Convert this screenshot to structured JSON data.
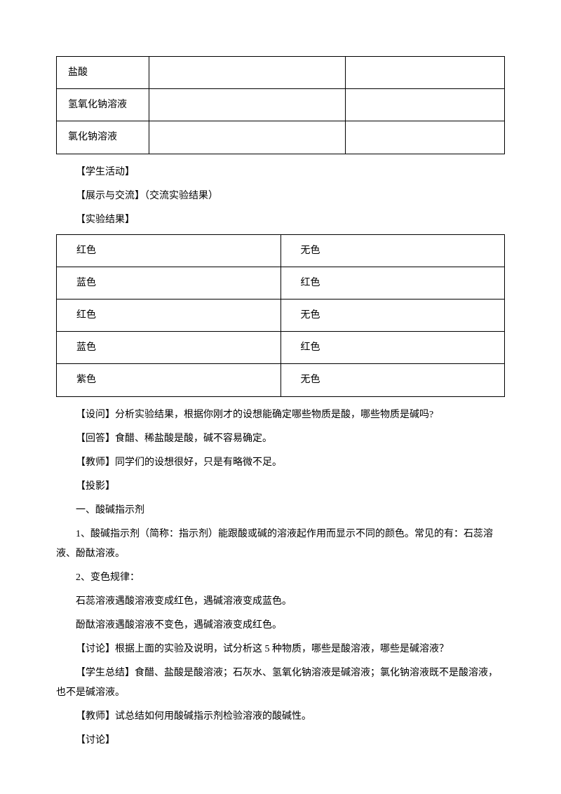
{
  "table1": {
    "rows": [
      [
        "盐酸",
        "",
        ""
      ],
      [
        "氢氧化钠溶液",
        "",
        ""
      ],
      [
        "氯化钠溶液",
        "",
        ""
      ]
    ]
  },
  "mid_paragraphs": [
    "【学生活动】",
    "【展示与交流】（交流实验结果）",
    "【实验结果】"
  ],
  "table2": {
    "rows": [
      [
        "红色",
        "无色"
      ],
      [
        "蓝色",
        "红色"
      ],
      [
        "红色",
        "无色"
      ],
      [
        "蓝色",
        "红色"
      ],
      [
        "紫色",
        "无色"
      ]
    ]
  },
  "bottom_paragraphs": [
    "【设问】分析实验结果，根据你刚才的设想能确定哪些物质是酸，哪些物质是碱吗?",
    "【回答】食醋、稀盐酸是酸，碱不容易确定。",
    "【教师】同学们的设想很好，只是有略微不足。",
    "【投影】",
    "一、酸碱指示剂"
  ],
  "wrap_para1": "1、酸碱指示剂（简称：指示剂）能跟酸或碱的溶液起作用而显示不同的颜色。常见的有：石蕊溶液、酚酞溶液。",
  "bottom_paragraphs2": [
    "2、变色规律：",
    "石蕊溶液遇酸溶液变成红色，遇碱溶液变成蓝色。",
    "酚酞溶液遇酸溶液不变色，遇碱溶液变成红色。",
    "【讨论】根据上面的实验及说明，试分析这 5 种物质，哪些是酸溶液，哪些是碱溶液？"
  ],
  "wrap_para2": "【学生总结】食醋、盐酸是酸溶液；石灰水、氢氧化钠溶液是碱溶液；氯化钠溶液既不是酸溶液，也不是碱溶液。",
  "bottom_paragraphs3": [
    "【教师】试总结如何用酸碱指示剂检验溶液的酸碱性。",
    "【讨论】"
  ]
}
